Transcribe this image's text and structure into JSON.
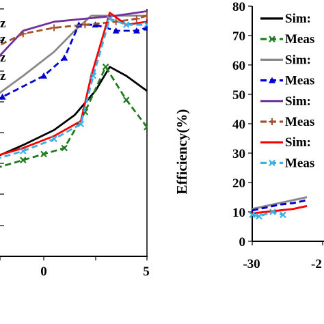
{
  "chart_data": [
    {
      "type": "line",
      "title": "",
      "xlabel": "",
      "ylabel": "",
      "x_ticks": [
        "0",
        "5"
      ],
      "xlim": [
        -5.5,
        5.2
      ],
      "ylim": [
        0,
        80
      ],
      "grid": false,
      "left_fragment_labels": [
        "z",
        "z",
        "z",
        "z"
      ],
      "series": [
        {
          "color": "#000000",
          "dash": "solid",
          "marker": "none",
          "points": [
            [
              -5.5,
              25
            ],
            [
              -3,
              31
            ],
            [
              -1,
              37
            ],
            [
              0.5,
              42
            ],
            [
              1.5,
              47
            ],
            [
              2.5,
              55
            ],
            [
              3.2,
              63
            ],
            [
              4,
              60
            ],
            [
              5,
              55
            ]
          ]
        },
        {
          "color": "#1e7b1e",
          "dash": "dash",
          "marker": "x",
          "points": [
            [
              -5.5,
              25
            ],
            [
              -4,
              27
            ],
            [
              -2.5,
              29
            ],
            [
              -1,
              32
            ],
            [
              0,
              34
            ],
            [
              1,
              36
            ],
            [
              2,
              48
            ],
            [
              3,
              63
            ],
            [
              4,
              52
            ],
            [
              5,
              43
            ]
          ]
        },
        {
          "color": "#888888",
          "dash": "solid",
          "marker": "none",
          "points": [
            [
              -5.5,
              40
            ],
            [
              -3,
              50
            ],
            [
              -1,
              60
            ],
            [
              0.5,
              68
            ],
            [
              1.5,
              75
            ],
            [
              2.3,
              80
            ],
            [
              3,
              80
            ],
            [
              4,
              80
            ],
            [
              5,
              80
            ]
          ]
        },
        {
          "color": "#0000cc",
          "dash": "dash",
          "marker": "tri",
          "points": [
            [
              -5.5,
              39
            ],
            [
              -4,
              46
            ],
            [
              -2,
              53
            ],
            [
              0,
              60
            ],
            [
              1,
              66
            ],
            [
              1.7,
              77
            ],
            [
              2.5,
              77
            ],
            [
              3.5,
              75
            ],
            [
              4.5,
              75
            ],
            [
              5,
              76
            ]
          ]
        },
        {
          "color": "#7030a0",
          "dash": "solid",
          "marker": "none",
          "points": [
            [
              -5.5,
              45
            ],
            [
              -4,
              53
            ],
            [
              -2.5,
              64
            ],
            [
              -1,
              75
            ],
            [
              0.5,
              78
            ],
            [
              2,
              79
            ],
            [
              3.5,
              80
            ],
            [
              5,
              81.5
            ]
          ]
        },
        {
          "color": "#a0522d",
          "dash": "dash",
          "marker": "+",
          "points": [
            [
              -5.5,
              45
            ],
            [
              -4,
              55
            ],
            [
              -2.5,
              69
            ],
            [
              -1,
              74
            ],
            [
              0.5,
              76
            ],
            [
              2,
              77
            ],
            [
              3.5,
              78
            ],
            [
              4.5,
              79
            ],
            [
              5,
              80
            ]
          ]
        },
        {
          "color": "#ff0000",
          "dash": "solid",
          "marker": "none",
          "points": [
            [
              -5.5,
              28
            ],
            [
              -3,
              32
            ],
            [
              -1,
              36
            ],
            [
              0.5,
              40
            ],
            [
              1.8,
              45
            ],
            [
              2.3,
              60
            ],
            [
              3.2,
              81
            ],
            [
              4,
              77
            ],
            [
              5,
              78
            ]
          ]
        },
        {
          "color": "#3ab0e8",
          "dash": "dash",
          "marker": "x",
          "points": [
            [
              -5.5,
              27
            ],
            [
              -3,
              31
            ],
            [
              -1,
              35
            ],
            [
              0.5,
              39
            ],
            [
              1.8,
              44
            ],
            [
              2.4,
              60
            ],
            [
              3.2,
              79
            ],
            [
              4,
              77
            ],
            [
              5,
              77
            ]
          ]
        }
      ]
    },
    {
      "type": "line",
      "title": "",
      "xlabel": "",
      "ylabel": "Efficiency(%)",
      "x_ticks": [
        "-30",
        "-2"
      ],
      "y_ticks": [
        "0",
        "10",
        "20",
        "30",
        "40",
        "50",
        "60",
        "70",
        "80"
      ],
      "xlim": [
        -30,
        -20
      ],
      "ylim": [
        0,
        80
      ],
      "grid": false,
      "legend_position": "top-right",
      "legend": [
        {
          "label": "Sim:",
          "color": "#000000",
          "dash": "solid",
          "marker": "none"
        },
        {
          "label": "Meas",
          "color": "#1e7b1e",
          "dash": "dash",
          "marker": "x"
        },
        {
          "label": "Sim:",
          "color": "#888888",
          "dash": "solid",
          "marker": "none"
        },
        {
          "label": "Meas",
          "color": "#0000cc",
          "dash": "dash",
          "marker": "tri"
        },
        {
          "label": "Sim:",
          "color": "#7030a0",
          "dash": "solid",
          "marker": "none"
        },
        {
          "label": "Meas",
          "color": "#a0522d",
          "dash": "dash",
          "marker": "+"
        },
        {
          "label": "Sim:",
          "color": "#ff0000",
          "dash": "solid",
          "marker": "none"
        },
        {
          "label": "Meas",
          "color": "#3ab0e8",
          "dash": "dash",
          "marker": "x"
        }
      ],
      "series": [
        {
          "color": "#888888",
          "dash": "solid",
          "marker": "none",
          "points": [
            [
              -30,
              11
            ],
            [
              -28,
              12
            ],
            [
              -26,
              13
            ],
            [
              -24,
              14
            ],
            [
              -22,
              15
            ]
          ]
        },
        {
          "color": "#0000cc",
          "dash": "dash",
          "marker": "none",
          "points": [
            [
              -30,
              10.5
            ],
            [
              -28,
              11.5
            ],
            [
              -26,
              12.5
            ],
            [
              -24,
              13
            ],
            [
              -22,
              14
            ]
          ]
        },
        {
          "color": "#ff0000",
          "dash": "solid",
          "marker": "none",
          "points": [
            [
              -30,
              9.5
            ],
            [
              -28,
              10
            ],
            [
              -26,
              10.5
            ],
            [
              -24,
              11
            ],
            [
              -22,
              12
            ]
          ]
        },
        {
          "color": "#3ab0e8",
          "dash": "dash",
          "marker": "x",
          "points": [
            [
              -30,
              9
            ],
            [
              -29,
              8.5
            ],
            [
              -27,
              10
            ],
            [
              -25.5,
              9
            ]
          ]
        }
      ]
    }
  ]
}
